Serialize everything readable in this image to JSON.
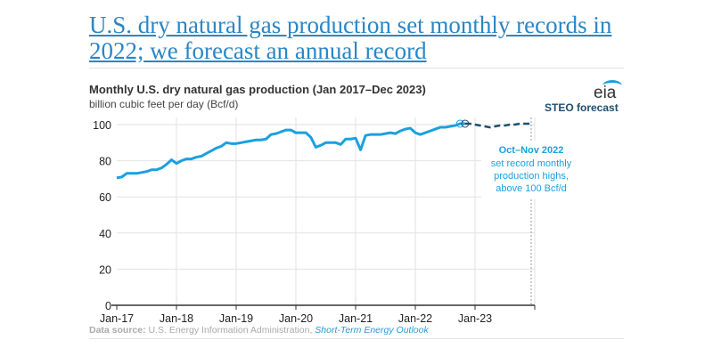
{
  "headline": "U.S. dry natural gas production set monthly records in 2022; we forecast an annual record",
  "logo": "eia",
  "source": {
    "label": "Data source:",
    "org": "U.S. Energy Information Administration,",
    "pub": "Short-Term Energy Outlook"
  },
  "colors": {
    "history": "#1ba0e0",
    "forecast": "#1f4e6e",
    "link": "#2a86c5"
  },
  "chart_data": {
    "type": "line",
    "title": "Monthly U.S. dry natural gas production (Jan 2017–Dec 2023)",
    "ylabel": "billion cubic feet per day (Bcf/d)",
    "ylim": [
      0,
      100
    ],
    "yticks": [
      0,
      20,
      40,
      60,
      80,
      100
    ],
    "xticks": [
      "Jan-17",
      "Jan-18",
      "Jan-19",
      "Jan-20",
      "Jan-21",
      "Jan-22",
      "Jan-23"
    ],
    "grid": true,
    "forecast_label": "STEO forecast",
    "annotation": {
      "title": "Oct–Nov 2022",
      "lines": [
        "set record monthly",
        "production highs,",
        "above 100 Bcf/d"
      ]
    },
    "start": "2017-01",
    "history": [
      70.5,
      71,
      73,
      73,
      73,
      73.5,
      74,
      75,
      75,
      76,
      78,
      80.5,
      78.5,
      80,
      81,
      81,
      82,
      82.5,
      84,
      85.5,
      87,
      88,
      90,
      89.5,
      89.5,
      90,
      90.5,
      91,
      91.5,
      91.5,
      92,
      94.5,
      95,
      96,
      97,
      97,
      95.5,
      95.5,
      95.5,
      93,
      87.5,
      88.5,
      90,
      90,
      90,
      89,
      92,
      92,
      92.5,
      86,
      94,
      94.5,
      94.5,
      94.5,
      95,
      95.5,
      95,
      96.5,
      97.5,
      98,
      95.5,
      94.5,
      95.5,
      96.5,
      97.5,
      98.5,
      98.5,
      99,
      99.5,
      100.5,
      100.5
    ],
    "forecast": [
      100.5,
      100.5,
      100,
      99.5,
      99,
      98.5,
      99,
      99.5,
      99.5,
      100,
      100,
      100.5,
      100.5,
      100.5
    ]
  }
}
